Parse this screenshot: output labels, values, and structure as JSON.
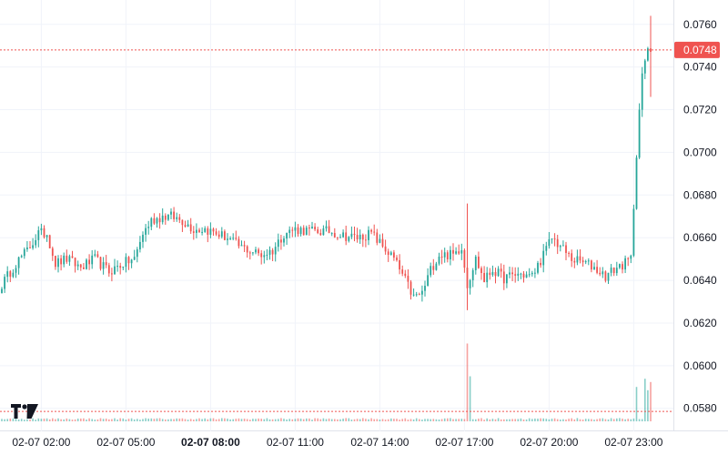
{
  "chart_data": {
    "type": "candlestick",
    "title": "",
    "xlabel": "",
    "ylabel": "",
    "ylim": [
      0.0572,
      0.0768
    ],
    "y_ticks": [
      "0.0580",
      "0.0600",
      "0.0620",
      "0.0640",
      "0.0660",
      "0.0680",
      "0.0700",
      "0.0720",
      "0.0740",
      "0.0760"
    ],
    "x_ticks": [
      {
        "t": "02-07 02:00",
        "i": 14,
        "bold": false
      },
      {
        "t": "02-07 05:00",
        "i": 44,
        "bold": false
      },
      {
        "t": "02-07 08:00",
        "i": 74,
        "bold": true
      },
      {
        "t": "02-07 11:00",
        "i": 104,
        "bold": false
      },
      {
        "t": "02-07 14:00",
        "i": 134,
        "bold": false
      },
      {
        "t": "02-07 17:00",
        "i": 164,
        "bold": false
      },
      {
        "t": "02-07 20:00",
        "i": 194,
        "bold": false
      },
      {
        "t": "02-07 23:00",
        "i": 224,
        "bold": false
      }
    ],
    "last_price": "0.0748",
    "grid": true,
    "up_color": "#26a69a",
    "down_color": "#ef5350",
    "price_line_color": "#ef5350",
    "close_path": [
      [
        0,
        0.0638
      ],
      [
        5,
        0.0648
      ],
      [
        9,
        0.0654
      ],
      [
        13,
        0.0662
      ],
      [
        16,
        0.0662
      ],
      [
        19,
        0.0648
      ],
      [
        23,
        0.065
      ],
      [
        28,
        0.0646
      ],
      [
        33,
        0.065
      ],
      [
        38,
        0.0644
      ],
      [
        43,
        0.0648
      ],
      [
        47,
        0.065
      ],
      [
        50,
        0.0662
      ],
      [
        53,
        0.0668
      ],
      [
        57,
        0.067
      ],
      [
        60,
        0.067
      ],
      [
        64,
        0.0668
      ],
      [
        68,
        0.0664
      ],
      [
        72,
        0.0664
      ],
      [
        76,
        0.0662
      ],
      [
        80,
        0.066
      ],
      [
        84,
        0.0656
      ],
      [
        88,
        0.0654
      ],
      [
        92,
        0.0652
      ],
      [
        96,
        0.0654
      ],
      [
        100,
        0.0662
      ],
      [
        104,
        0.0664
      ],
      [
        110,
        0.0663
      ],
      [
        116,
        0.0663
      ],
      [
        121,
        0.0661
      ],
      [
        126,
        0.066
      ],
      [
        131,
        0.0662
      ],
      [
        135,
        0.0656
      ],
      [
        139,
        0.065
      ],
      [
        143,
        0.064
      ],
      [
        146,
        0.0632
      ],
      [
        149,
        0.0634
      ],
      [
        152,
        0.0645
      ],
      [
        155,
        0.0652
      ],
      [
        160,
        0.0652
      ],
      [
        163,
        0.0656
      ],
      [
        165,
        0.0638
      ],
      [
        168,
        0.065
      ],
      [
        171,
        0.064
      ],
      [
        174,
        0.0645
      ],
      [
        178,
        0.0641
      ],
      [
        183,
        0.0643
      ],
      [
        188,
        0.0642
      ],
      [
        192,
        0.0652
      ],
      [
        195,
        0.066
      ],
      [
        198,
        0.0656
      ],
      [
        202,
        0.065
      ],
      [
        207,
        0.0648
      ],
      [
        210,
        0.0646
      ],
      [
        214,
        0.0642
      ],
      [
        218,
        0.0646
      ],
      [
        221,
        0.0648
      ],
      [
        223,
        0.065
      ],
      [
        224,
        0.0675
      ],
      [
        225,
        0.07
      ],
      [
        226,
        0.072
      ],
      [
        227,
        0.0735
      ],
      [
        228,
        0.0743
      ],
      [
        229,
        0.0747
      ],
      [
        230,
        0.0748
      ]
    ],
    "spikes": [
      {
        "i": 165,
        "high": 0.0676,
        "low": 0.0626
      },
      {
        "i": 230,
        "high": 0.0764,
        "low": 0.0726
      }
    ],
    "volume_spikes": [
      {
        "i": 165,
        "v": 0.95
      },
      {
        "i": 166,
        "v": 0.55
      },
      {
        "i": 225,
        "v": 0.42
      },
      {
        "i": 228,
        "v": 0.52
      },
      {
        "i": 229,
        "v": 0.38
      },
      {
        "i": 230,
        "v": 0.48
      }
    ],
    "volume_ma_level": 0.22
  }
}
